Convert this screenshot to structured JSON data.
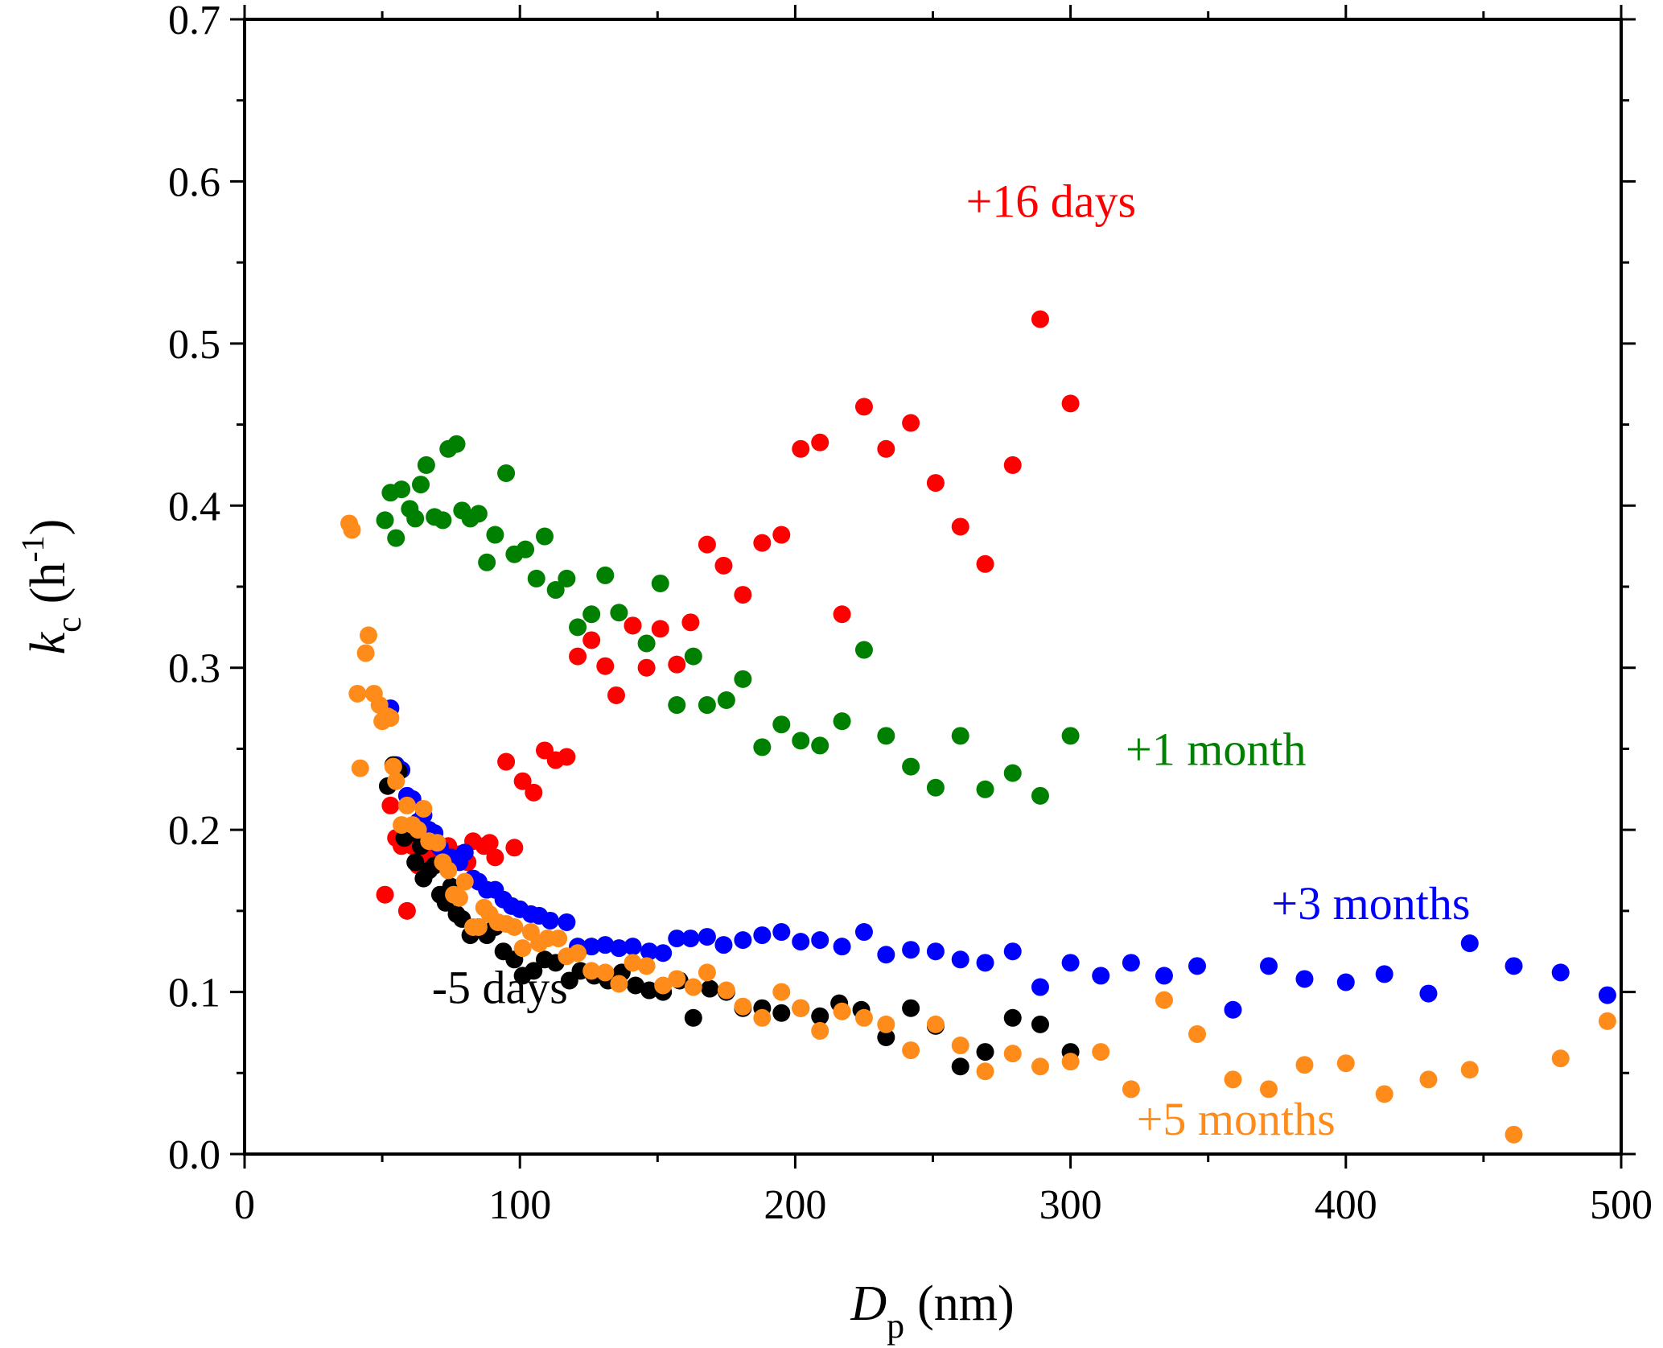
{
  "chart_data": {
    "type": "scatter",
    "xlabel": {
      "main": "D",
      "sub": "p",
      "unit": "(nm)"
    },
    "ylabel": {
      "main": "k",
      "sub": "c",
      "unit_pre": "(h",
      "unit_sup": "-1",
      "unit_post": ")"
    },
    "xlim": [
      0,
      500
    ],
    "ylim": [
      0,
      0.7
    ],
    "x_ticks": [
      0,
      100,
      200,
      300,
      400,
      500
    ],
    "x_tick_labels": [
      "0",
      "100",
      "200",
      "300",
      "400",
      "500"
    ],
    "y_ticks": [
      0,
      0.1,
      0.2,
      0.3,
      0.4,
      0.5,
      0.6,
      0.7
    ],
    "y_tick_labels": [
      "0.0",
      "0.1",
      "0.2",
      "0.3",
      "0.4",
      "0.5",
      "0.6",
      "0.7"
    ],
    "grid": false,
    "series": [
      {
        "name": "-5 days",
        "color": "#000000",
        "label_anchor": [
          68,
          0.093
        ],
        "points": [
          [
            52,
            0.227
          ],
          [
            54,
            0.24
          ],
          [
            56,
            0.236
          ],
          [
            58,
            0.195
          ],
          [
            60,
            0.198
          ],
          [
            62,
            0.18
          ],
          [
            64,
            0.19
          ],
          [
            65,
            0.17
          ],
          [
            67,
            0.175
          ],
          [
            69,
            0.178
          ],
          [
            71,
            0.16
          ],
          [
            73,
            0.155
          ],
          [
            75,
            0.165
          ],
          [
            77,
            0.148
          ],
          [
            79,
            0.145
          ],
          [
            82,
            0.135
          ],
          [
            85,
            0.14
          ],
          [
            88,
            0.135
          ],
          [
            91,
            0.14
          ],
          [
            94,
            0.125
          ],
          [
            98,
            0.12
          ],
          [
            101,
            0.11
          ],
          [
            105,
            0.113
          ],
          [
            109,
            0.12
          ],
          [
            113,
            0.118
          ],
          [
            118,
            0.107
          ],
          [
            122,
            0.113
          ],
          [
            127,
            0.11
          ],
          [
            132,
            0.107
          ],
          [
            137,
            0.112
          ],
          [
            142,
            0.104
          ],
          [
            147,
            0.101
          ],
          [
            152,
            0.1
          ],
          [
            158,
            0.107
          ],
          [
            163,
            0.084
          ],
          [
            169,
            0.102
          ],
          [
            175,
            0.1
          ],
          [
            181,
            0.09
          ],
          [
            188,
            0.09
          ],
          [
            195,
            0.087
          ],
          [
            202,
            0.09
          ],
          [
            209,
            0.085
          ],
          [
            216,
            0.093
          ],
          [
            224,
            0.089
          ],
          [
            233,
            0.072
          ],
          [
            242,
            0.09
          ],
          [
            251,
            0.079
          ],
          [
            260,
            0.054
          ],
          [
            269,
            0.063
          ],
          [
            279,
            0.084
          ],
          [
            289,
            0.08
          ],
          [
            300,
            0.063
          ]
        ]
      },
      {
        "name": "+16 days",
        "color": "#ff0000",
        "label_anchor": [
          262,
          0.578
        ],
        "points": [
          [
            51,
            0.16
          ],
          [
            53,
            0.215
          ],
          [
            55,
            0.195
          ],
          [
            57,
            0.19
          ],
          [
            59,
            0.15
          ],
          [
            61,
            0.19
          ],
          [
            63,
            0.178
          ],
          [
            65,
            0.195
          ],
          [
            67,
            0.185
          ],
          [
            69,
            0.18
          ],
          [
            71,
            0.185
          ],
          [
            74,
            0.19
          ],
          [
            78,
            0.185
          ],
          [
            81,
            0.18
          ],
          [
            83,
            0.193
          ],
          [
            87,
            0.19
          ],
          [
            89,
            0.192
          ],
          [
            91,
            0.183
          ],
          [
            95,
            0.242
          ],
          [
            98,
            0.189
          ],
          [
            101,
            0.23
          ],
          [
            105,
            0.223
          ],
          [
            109,
            0.249
          ],
          [
            113,
            0.243
          ],
          [
            117,
            0.245
          ],
          [
            121,
            0.307
          ],
          [
            126,
            0.317
          ],
          [
            131,
            0.301
          ],
          [
            135,
            0.283
          ],
          [
            141,
            0.326
          ],
          [
            146,
            0.3
          ],
          [
            151,
            0.324
          ],
          [
            157,
            0.302
          ],
          [
            162,
            0.328
          ],
          [
            168,
            0.376
          ],
          [
            174,
            0.363
          ],
          [
            181,
            0.345
          ],
          [
            188,
            0.377
          ],
          [
            195,
            0.382
          ],
          [
            202,
            0.435
          ],
          [
            209,
            0.439
          ],
          [
            217,
            0.333
          ],
          [
            225,
            0.461
          ],
          [
            233,
            0.435
          ],
          [
            242,
            0.451
          ],
          [
            251,
            0.414
          ],
          [
            260,
            0.387
          ],
          [
            269,
            0.364
          ],
          [
            279,
            0.425
          ],
          [
            289,
            0.515
          ],
          [
            300,
            0.463
          ]
        ]
      },
      {
        "name": "+1 month",
        "color": "#008000",
        "label_anchor": [
          320,
          0.24
        ],
        "points": [
          [
            51,
            0.391
          ],
          [
            53,
            0.408
          ],
          [
            55,
            0.38
          ],
          [
            57,
            0.41
          ],
          [
            60,
            0.398
          ],
          [
            62,
            0.392
          ],
          [
            64,
            0.413
          ],
          [
            66,
            0.425
          ],
          [
            69,
            0.393
          ],
          [
            72,
            0.391
          ],
          [
            74,
            0.435
          ],
          [
            77,
            0.438
          ],
          [
            79,
            0.397
          ],
          [
            82,
            0.392
          ],
          [
            85,
            0.395
          ],
          [
            88,
            0.365
          ],
          [
            91,
            0.382
          ],
          [
            95,
            0.42
          ],
          [
            98,
            0.37
          ],
          [
            102,
            0.373
          ],
          [
            106,
            0.355
          ],
          [
            109,
            0.381
          ],
          [
            113,
            0.348
          ],
          [
            117,
            0.355
          ],
          [
            121,
            0.325
          ],
          [
            126,
            0.333
          ],
          [
            131,
            0.357
          ],
          [
            136,
            0.334
          ],
          [
            141,
            0.326
          ],
          [
            146,
            0.315
          ],
          [
            151,
            0.352
          ],
          [
            157,
            0.277
          ],
          [
            163,
            0.307
          ],
          [
            168,
            0.277
          ],
          [
            175,
            0.28
          ],
          [
            181,
            0.293
          ],
          [
            188,
            0.251
          ],
          [
            195,
            0.265
          ],
          [
            202,
            0.255
          ],
          [
            209,
            0.252
          ],
          [
            217,
            0.267
          ],
          [
            233,
            0.258
          ],
          [
            242,
            0.239
          ],
          [
            251,
            0.226
          ],
          [
            260,
            0.258
          ],
          [
            269,
            0.225
          ],
          [
            279,
            0.235
          ],
          [
            289,
            0.221
          ],
          [
            300,
            0.258
          ],
          [
            225,
            0.311
          ]
        ]
      },
      {
        "name": "+3 months",
        "color": "#0000ff",
        "label_anchor": [
          373,
          0.145
        ],
        "points": [
          [
            53,
            0.275
          ],
          [
            55,
            0.24
          ],
          [
            57,
            0.237
          ],
          [
            59,
            0.221
          ],
          [
            61,
            0.219
          ],
          [
            63,
            0.205
          ],
          [
            65,
            0.209
          ],
          [
            67,
            0.2
          ],
          [
            69,
            0.198
          ],
          [
            71,
            0.189
          ],
          [
            73,
            0.182
          ],
          [
            75,
            0.183
          ],
          [
            78,
            0.18
          ],
          [
            80,
            0.186
          ],
          [
            83,
            0.17
          ],
          [
            85,
            0.168
          ],
          [
            88,
            0.163
          ],
          [
            91,
            0.163
          ],
          [
            94,
            0.157
          ],
          [
            97,
            0.153
          ],
          [
            100,
            0.151
          ],
          [
            104,
            0.148
          ],
          [
            107,
            0.147
          ],
          [
            111,
            0.144
          ],
          [
            117,
            0.143
          ],
          [
            121,
            0.128
          ],
          [
            126,
            0.128
          ],
          [
            131,
            0.129
          ],
          [
            136,
            0.127
          ],
          [
            141,
            0.128
          ],
          [
            147,
            0.125
          ],
          [
            152,
            0.124
          ],
          [
            157,
            0.133
          ],
          [
            162,
            0.133
          ],
          [
            168,
            0.134
          ],
          [
            174,
            0.129
          ],
          [
            181,
            0.132
          ],
          [
            188,
            0.135
          ],
          [
            195,
            0.137
          ],
          [
            202,
            0.131
          ],
          [
            209,
            0.132
          ],
          [
            217,
            0.128
          ],
          [
            225,
            0.137
          ],
          [
            233,
            0.123
          ],
          [
            242,
            0.126
          ],
          [
            251,
            0.125
          ],
          [
            260,
            0.12
          ],
          [
            269,
            0.118
          ],
          [
            279,
            0.125
          ],
          [
            289,
            0.103
          ],
          [
            300,
            0.118
          ],
          [
            311,
            0.11
          ],
          [
            322,
            0.118
          ],
          [
            334,
            0.11
          ],
          [
            346,
            0.116
          ],
          [
            359,
            0.089
          ],
          [
            372,
            0.116
          ],
          [
            385,
            0.108
          ],
          [
            400,
            0.106
          ],
          [
            414,
            0.111
          ],
          [
            430,
            0.099
          ],
          [
            445,
            0.13
          ],
          [
            461,
            0.116
          ],
          [
            478,
            0.112
          ],
          [
            495,
            0.098
          ]
        ]
      },
      {
        "name": "+5 months",
        "color": "#ff8c1a",
        "label_anchor": [
          324,
          0.012
        ],
        "points": [
          [
            38,
            0.389
          ],
          [
            39,
            0.385
          ],
          [
            41,
            0.284
          ],
          [
            42,
            0.238
          ],
          [
            44,
            0.309
          ],
          [
            45,
            0.32
          ],
          [
            47,
            0.284
          ],
          [
            49,
            0.277
          ],
          [
            50,
            0.267
          ],
          [
            52,
            0.27
          ],
          [
            53,
            0.269
          ],
          [
            54,
            0.239
          ],
          [
            55,
            0.23
          ],
          [
            57,
            0.203
          ],
          [
            59,
            0.215
          ],
          [
            61,
            0.203
          ],
          [
            63,
            0.2
          ],
          [
            65,
            0.213
          ],
          [
            67,
            0.193
          ],
          [
            70,
            0.192
          ],
          [
            72,
            0.18
          ],
          [
            74,
            0.175
          ],
          [
            76,
            0.16
          ],
          [
            78,
            0.158
          ],
          [
            80,
            0.168
          ],
          [
            83,
            0.14
          ],
          [
            85,
            0.14
          ],
          [
            87,
            0.152
          ],
          [
            89,
            0.148
          ],
          [
            92,
            0.143
          ],
          [
            95,
            0.142
          ],
          [
            98,
            0.14
          ],
          [
            101,
            0.127
          ],
          [
            104,
            0.137
          ],
          [
            107,
            0.13
          ],
          [
            110,
            0.133
          ],
          [
            114,
            0.133
          ],
          [
            117,
            0.122
          ],
          [
            121,
            0.124
          ],
          [
            126,
            0.113
          ],
          [
            131,
            0.112
          ],
          [
            136,
            0.105
          ],
          [
            141,
            0.118
          ],
          [
            146,
            0.116
          ],
          [
            152,
            0.104
          ],
          [
            157,
            0.108
          ],
          [
            163,
            0.103
          ],
          [
            168,
            0.112
          ],
          [
            175,
            0.101
          ],
          [
            181,
            0.091
          ],
          [
            188,
            0.084
          ],
          [
            195,
            0.1
          ],
          [
            202,
            0.09
          ],
          [
            209,
            0.076
          ],
          [
            217,
            0.088
          ],
          [
            225,
            0.084
          ],
          [
            233,
            0.08
          ],
          [
            242,
            0.064
          ],
          [
            251,
            0.08
          ],
          [
            260,
            0.067
          ],
          [
            269,
            0.051
          ],
          [
            279,
            0.062
          ],
          [
            289,
            0.054
          ],
          [
            300,
            0.057
          ],
          [
            311,
            0.063
          ],
          [
            322,
            0.04
          ],
          [
            334,
            0.095
          ],
          [
            346,
            0.074
          ],
          [
            359,
            0.046
          ],
          [
            372,
            0.04
          ],
          [
            385,
            0.055
          ],
          [
            400,
            0.056
          ],
          [
            414,
            0.037
          ],
          [
            430,
            0.046
          ],
          [
            445,
            0.052
          ],
          [
            461,
            0.012
          ],
          [
            478,
            0.059
          ],
          [
            495,
            0.082
          ]
        ]
      }
    ]
  }
}
